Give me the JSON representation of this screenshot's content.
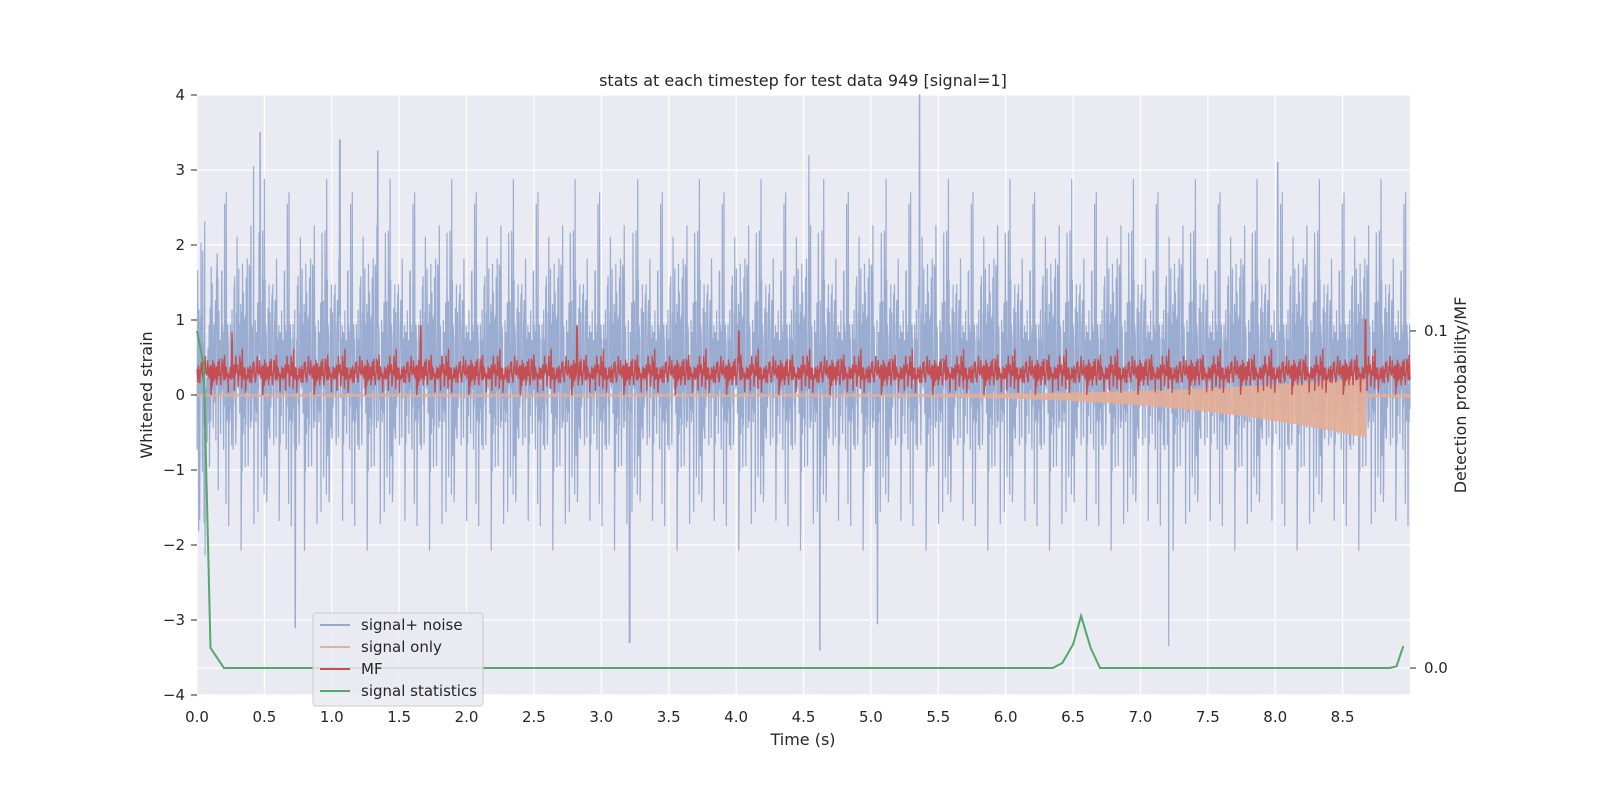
{
  "chart_data": {
    "type": "line",
    "title": "stats at each timestep for test data 949 [signal=1]",
    "xlabel": "Time (s)",
    "ylabel": "Whitened strain",
    "y2label": "Detection probability/MF",
    "xlim": [
      0.0,
      9.0
    ],
    "ylim": [
      -4.0,
      4.0
    ],
    "y2lim": [
      -0.008,
      0.17
    ],
    "x_ticks": [
      "0.0",
      "0.5",
      "1.0",
      "1.5",
      "2.0",
      "2.5",
      "3.0",
      "3.5",
      "4.0",
      "4.5",
      "5.0",
      "5.5",
      "6.0",
      "6.5",
      "7.0",
      "7.5",
      "8.0",
      "8.5"
    ],
    "y_ticks": [
      "−4",
      "−3",
      "−2",
      "−1",
      "0",
      "1",
      "2",
      "3",
      "4"
    ],
    "y2_ticks": [
      "0.0",
      "0.1"
    ],
    "grid": true,
    "legend_position": "lower-left",
    "series": [
      {
        "name": "signal+ noise",
        "color": "#97a9cf",
        "description_range": [
          -3.4,
          4.0
        ],
        "peaks": [
          [
            0.47,
            3.5
          ],
          [
            0.42,
            3.05
          ],
          [
            1.06,
            3.4
          ],
          [
            1.34,
            3.25
          ],
          [
            4.54,
            3.2
          ],
          [
            5.36,
            4.0
          ],
          [
            8.02,
            3.1
          ],
          [
            4.62,
            -3.45
          ],
          [
            3.21,
            -3.3
          ],
          [
            7.21,
            -3.35
          ],
          [
            0.73,
            -3.1
          ],
          [
            5.05,
            -3.05
          ]
        ]
      },
      {
        "name": "signal only",
        "color": "#e5ae96",
        "chirp_start": 4.5,
        "chirp_peak_time": 8.67,
        "chirp_peak_value": -0.55
      },
      {
        "name": "MF",
        "color": "#c44e52",
        "baseline": 0.25,
        "peaks": [
          [
            0.26,
            0.85
          ],
          [
            1.66,
            0.92
          ],
          [
            2.82,
            0.92
          ],
          [
            4.02,
            0.85
          ],
          [
            8.67,
            1.0
          ]
        ]
      },
      {
        "name": "signal statistics",
        "color": "#55a868",
        "axis": "right",
        "x": [
          0.0,
          0.05,
          0.1,
          0.15,
          0.2,
          1.0,
          2.0,
          3.0,
          4.0,
          5.0,
          6.0,
          6.35,
          6.42,
          6.5,
          6.56,
          6.63,
          6.7,
          6.8,
          7.0,
          8.0,
          8.85,
          8.9,
          8.95
        ],
        "values": [
          0.1,
          0.09,
          0.006,
          0.003,
          0.0,
          0.0,
          0.0,
          0.0,
          0.0,
          0.0,
          0.0,
          0.0,
          0.0015,
          0.007,
          0.0155,
          0.006,
          0.0,
          0.0,
          0.0,
          0.0,
          0.0,
          0.0005,
          0.0065
        ]
      }
    ]
  }
}
